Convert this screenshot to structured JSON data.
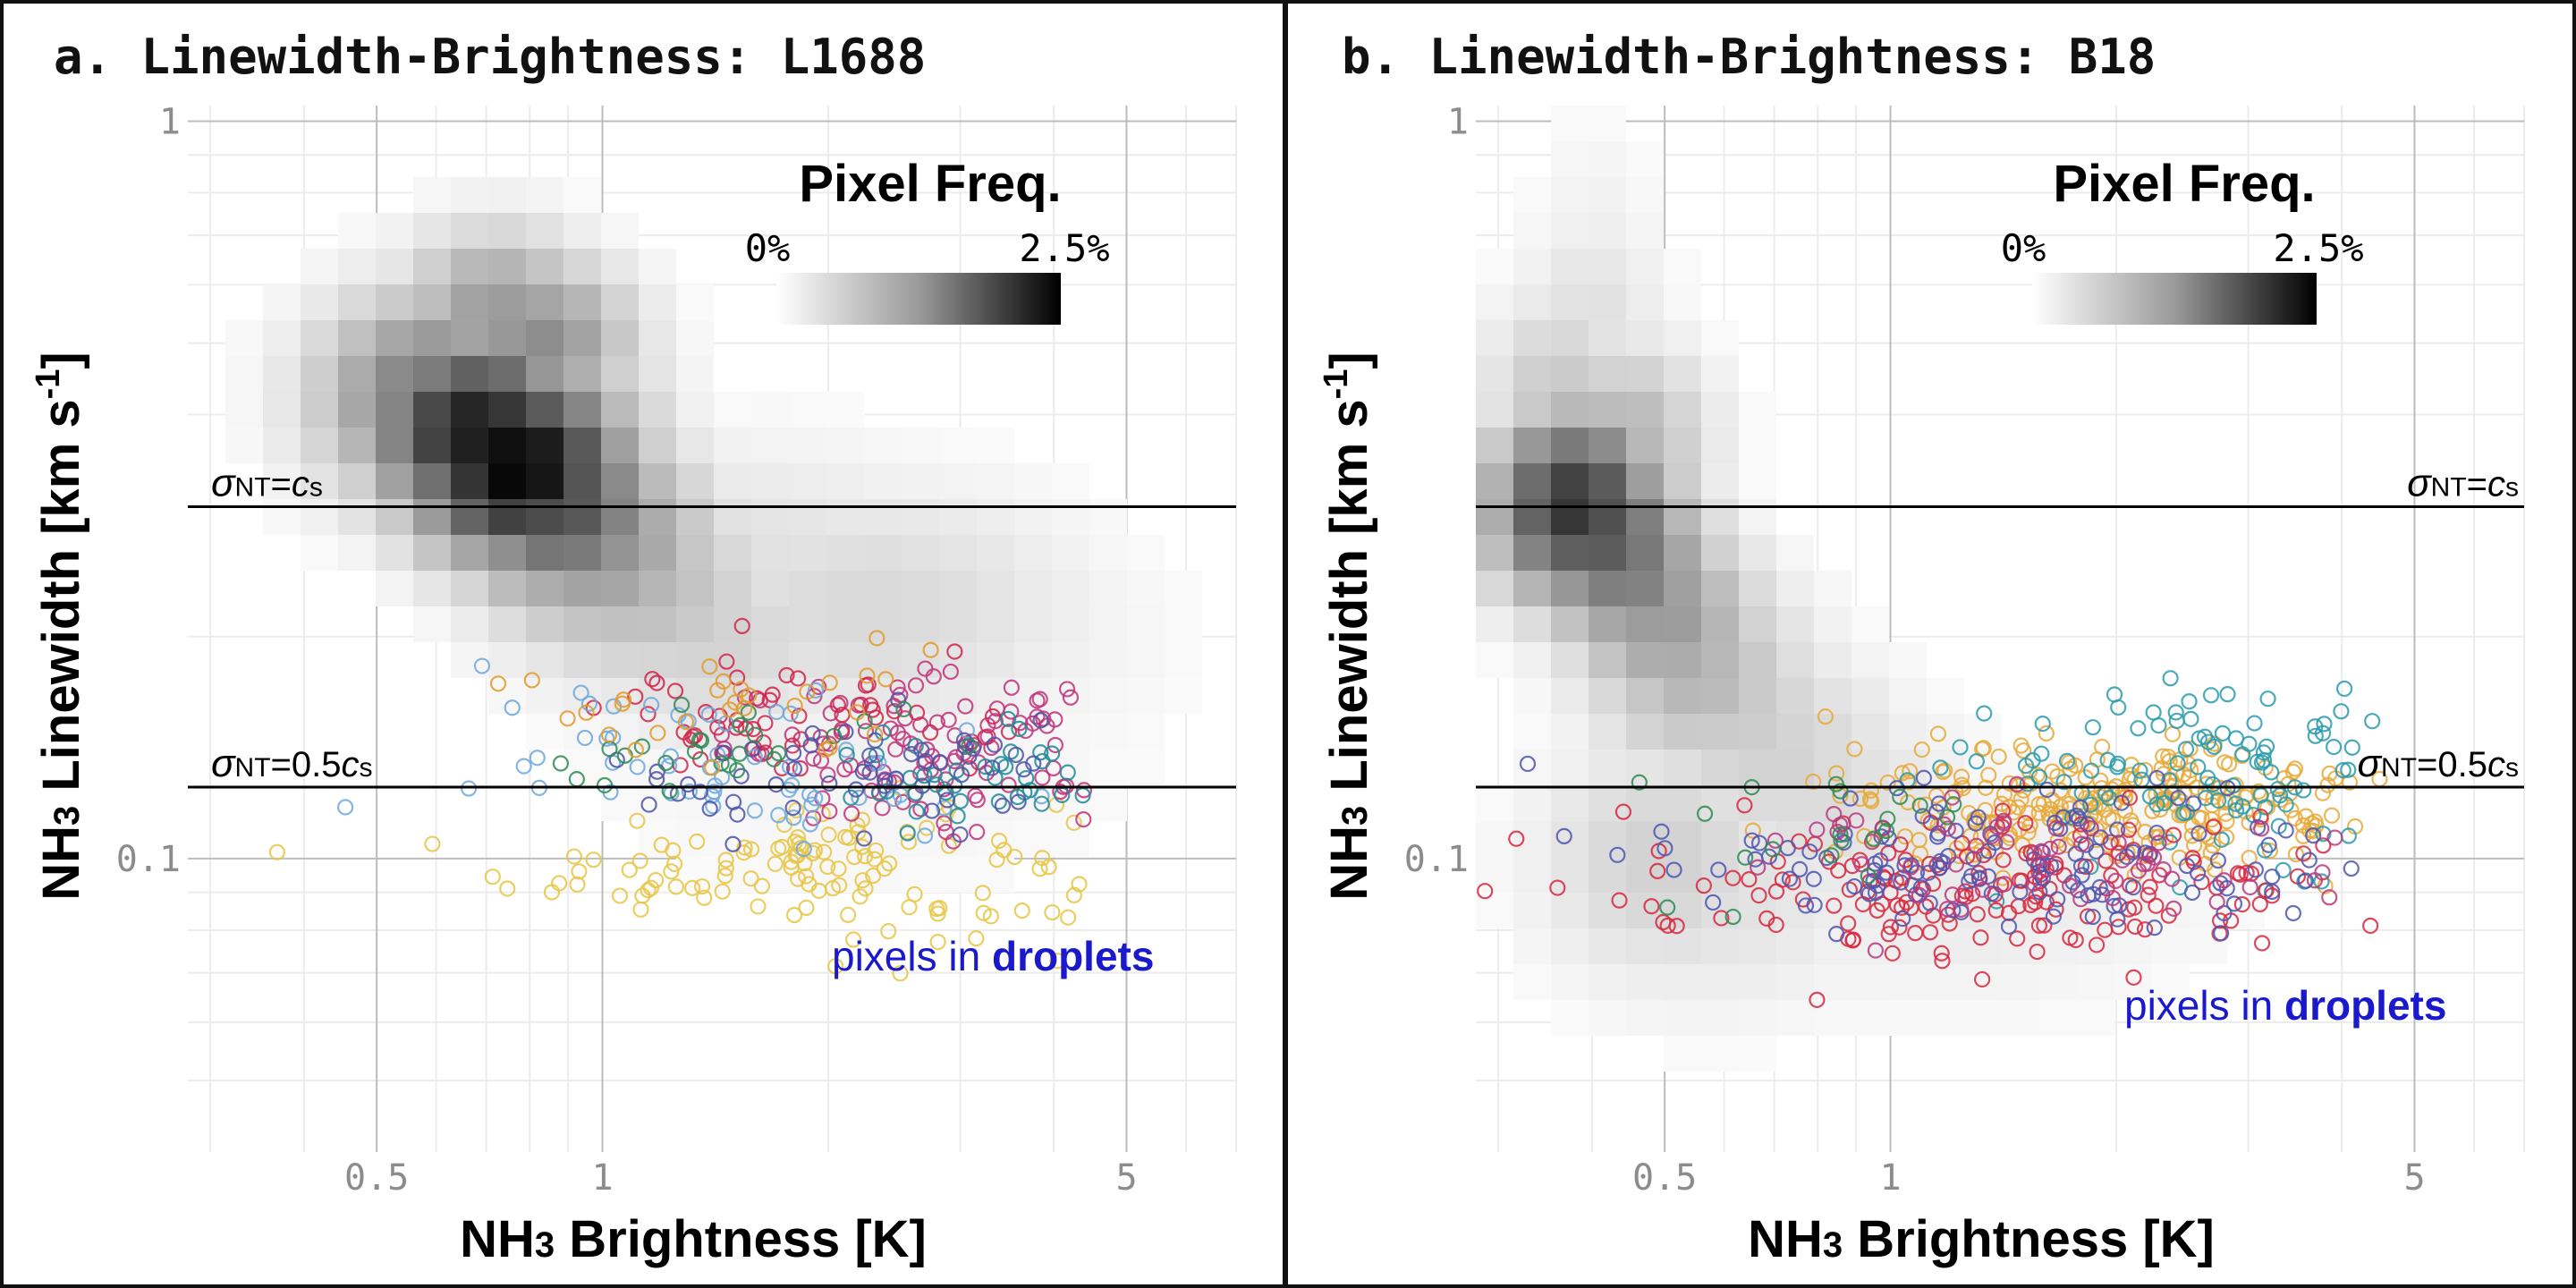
{
  "chart_data": [
    {
      "type": "scatter",
      "title": "a. Linewidth-Brightness: L1688",
      "xlabel": "NH3 Brightness [K]",
      "ylabel": "NH3 Linewidth [km s-1]",
      "x_scale": "log",
      "y_scale": "log",
      "xlim": [
        0.28,
        7.0
      ],
      "ylim": [
        0.04,
        1.05
      ],
      "x_ticks": [
        {
          "v": 0.5,
          "label": "0.5"
        },
        {
          "v": 1,
          "label": "1"
        },
        {
          "v": 5,
          "label": "5"
        }
      ],
      "y_ticks": [
        {
          "v": 0.1,
          "label": "0.1"
        },
        {
          "v": 1,
          "label": "1"
        }
      ],
      "legend": {
        "title": "Pixel Freq.",
        "min_label": "0%",
        "max_label": "2.5%",
        "position": "top-right"
      },
      "ref_lines": [
        {
          "y": 0.3,
          "label_main": "σ",
          "label_sub": "NT",
          "label_tail": "=",
          "label_tail2": "c",
          "label_tail2_sub": "s",
          "side": "left"
        },
        {
          "y": 0.125,
          "label_main": "σ",
          "label_sub": "NT",
          "label_tail": "=0.5",
          "label_tail2": "c",
          "label_tail2_sub": "s",
          "side": "left"
        }
      ],
      "annotation": {
        "prefix": "pixels in ",
        "bold": "droplets"
      },
      "heatmap": {
        "x": [
          0.6,
          0.68,
          0.77,
          0.87,
          0.98,
          1.1,
          1.25,
          1.4,
          0.72,
          0.82,
          1.6,
          1.9,
          2.3,
          2.7,
          3.1,
          2.2,
          0.85,
          0.95
        ],
        "y": [
          0.42,
          0.38,
          0.34,
          0.3,
          0.27,
          0.24,
          0.22,
          0.2,
          0.55,
          0.5,
          0.25,
          0.23,
          0.22,
          0.21,
          0.2,
          0.16,
          0.45,
          0.4
        ],
        "intensity": [
          0.55,
          0.9,
          1.0,
          0.7,
          0.45,
          0.3,
          0.22,
          0.18,
          0.4,
          0.45,
          0.12,
          0.1,
          0.15,
          0.08,
          0.07,
          0.05,
          0.35,
          0.3
        ],
        "spread_x": [
          0.11,
          0.1,
          0.1,
          0.1,
          0.11,
          0.12,
          0.12,
          0.12,
          0.09,
          0.09,
          0.2,
          0.2,
          0.2,
          0.2,
          0.2,
          0.3,
          0.08,
          0.08
        ],
        "spread_y": [
          0.1,
          0.09,
          0.09,
          0.09,
          0.1,
          0.1,
          0.1,
          0.1,
          0.08,
          0.08,
          0.12,
          0.12,
          0.12,
          0.12,
          0.12,
          0.2,
          0.07,
          0.07
        ]
      },
      "series": [
        {
          "name": "gold",
          "color": "#e8c547",
          "center_x": 2.0,
          "center_y": 0.098,
          "spread_x": 0.42,
          "spread_y": 0.08,
          "n": 130
        },
        {
          "name": "magenta",
          "color": "#c0347a",
          "center_x": 2.8,
          "center_y": 0.14,
          "spread_x": 0.28,
          "spread_y": 0.08,
          "n": 110
        },
        {
          "name": "crimson",
          "color": "#d1244a",
          "center_x": 1.8,
          "center_y": 0.155,
          "spread_x": 0.25,
          "spread_y": 0.07,
          "n": 55
        },
        {
          "name": "light-blue",
          "color": "#6fa8dc",
          "center_x": 1.6,
          "center_y": 0.135,
          "spread_x": 0.38,
          "spread_y": 0.08,
          "n": 60
        },
        {
          "name": "teal",
          "color": "#1f8a9a",
          "center_x": 3.2,
          "center_y": 0.125,
          "spread_x": 0.22,
          "spread_y": 0.06,
          "n": 45
        },
        {
          "name": "indigo",
          "color": "#4b52a8",
          "center_x": 2.3,
          "center_y": 0.13,
          "spread_x": 0.35,
          "spread_y": 0.07,
          "n": 55
        },
        {
          "name": "green",
          "color": "#2e8b57",
          "center_x": 1.3,
          "center_y": 0.14,
          "spread_x": 0.3,
          "spread_y": 0.07,
          "n": 25
        },
        {
          "name": "orange",
          "color": "#e09b2d",
          "center_x": 1.5,
          "center_y": 0.165,
          "spread_x": 0.3,
          "spread_y": 0.08,
          "n": 30
        }
      ]
    },
    {
      "type": "scatter",
      "title": "b. Linewidth-Brightness: B18",
      "xlabel": "NH3 Brightness [K]",
      "ylabel": "NH3 Linewidth [km s-1]",
      "x_scale": "log",
      "y_scale": "log",
      "xlim": [
        0.28,
        7.0
      ],
      "ylim": [
        0.04,
        1.05
      ],
      "x_ticks": [
        {
          "v": 0.5,
          "label": "0.5"
        },
        {
          "v": 1,
          "label": "1"
        },
        {
          "v": 5,
          "label": "5"
        }
      ],
      "y_ticks": [
        {
          "v": 0.1,
          "label": "0.1"
        },
        {
          "v": 1,
          "label": "1"
        }
      ],
      "legend": {
        "title": "Pixel Freq.",
        "min_label": "0%",
        "max_label": "2.5%",
        "position": "top-right"
      },
      "ref_lines": [
        {
          "y": 0.3,
          "label_main": "σ",
          "label_sub": "NT",
          "label_tail": "=",
          "label_tail2": "c",
          "label_tail2_sub": "s",
          "side": "right"
        },
        {
          "y": 0.125,
          "label_main": "σ",
          "label_sub": "NT",
          "label_tail": "=0.5",
          "label_tail2": "c",
          "label_tail2_sub": "s",
          "side": "right"
        }
      ],
      "annotation": {
        "prefix": "pixels in ",
        "bold": "droplets"
      },
      "heatmap": {
        "x": [
          0.38,
          0.42,
          0.46,
          0.5,
          0.55,
          0.62,
          0.7,
          0.8,
          0.36,
          0.4,
          0.44,
          0.5,
          0.58,
          0.9,
          1.2,
          0.4
        ],
        "y": [
          0.3,
          0.27,
          0.24,
          0.21,
          0.18,
          0.16,
          0.14,
          0.12,
          0.42,
          0.55,
          0.37,
          0.1,
          0.09,
          0.1,
          0.09,
          0.7
        ],
        "intensity": [
          0.8,
          0.65,
          0.5,
          0.4,
          0.3,
          0.22,
          0.18,
          0.14,
          0.22,
          0.12,
          0.3,
          0.18,
          0.12,
          0.08,
          0.08,
          0.06
        ],
        "spread_x": [
          0.08,
          0.08,
          0.08,
          0.09,
          0.1,
          0.1,
          0.12,
          0.14,
          0.07,
          0.07,
          0.08,
          0.12,
          0.16,
          0.2,
          0.25,
          0.06
        ],
        "spread_y": [
          0.09,
          0.09,
          0.09,
          0.09,
          0.1,
          0.1,
          0.1,
          0.1,
          0.1,
          0.1,
          0.09,
          0.12,
          0.12,
          0.12,
          0.12,
          0.12
        ]
      },
      "series": [
        {
          "name": "gold",
          "color": "#e8a93a",
          "center_x": 2.0,
          "center_y": 0.118,
          "spread_x": 0.35,
          "spread_y": 0.07,
          "n": 260
        },
        {
          "name": "teal",
          "color": "#2a9bab",
          "center_x": 2.6,
          "center_y": 0.13,
          "spread_x": 0.3,
          "spread_y": 0.1,
          "n": 110
        },
        {
          "name": "crimson",
          "color": "#d6283f",
          "center_x": 1.3,
          "center_y": 0.09,
          "spread_x": 0.45,
          "spread_y": 0.09,
          "n": 170
        },
        {
          "name": "indigo",
          "color": "#4e55b0",
          "center_x": 1.4,
          "center_y": 0.098,
          "spread_x": 0.48,
          "spread_y": 0.08,
          "n": 140
        },
        {
          "name": "magenta",
          "color": "#b9397f",
          "center_x": 1.6,
          "center_y": 0.1,
          "spread_x": 0.4,
          "spread_y": 0.08,
          "n": 60
        },
        {
          "name": "green",
          "color": "#2e8b57",
          "center_x": 0.75,
          "center_y": 0.11,
          "spread_x": 0.2,
          "spread_y": 0.07,
          "n": 20
        }
      ]
    }
  ]
}
